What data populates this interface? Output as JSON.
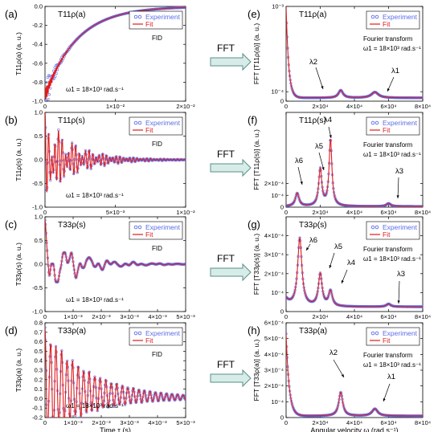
{
  "chart_data": [
    {
      "type": "line",
      "panel_label": "(a)",
      "title": "T11ρ(a)",
      "annotation": "FID",
      "param": "ω1 = 18×10³ rad.s⁻¹",
      "ylabel": "T11ρ(a)  (a. u.)",
      "xlabel": "",
      "xlim": [
        0,
        0.02
      ],
      "ylim": [
        -1.0,
        0.0
      ],
      "xticks": [
        "0",
        "1×10⁻²",
        "2×10⁻²"
      ],
      "yticks": [
        "0.0",
        "-0.2",
        "-0.4",
        "-0.6",
        "-0.8",
        "-1.0"
      ],
      "legend": [
        "Experiment",
        "Fit"
      ],
      "legend_position": "top-right",
      "series": [
        {
          "name": "Experiment",
          "model": "decay",
          "y0": -0.95,
          "tau": 0.0045,
          "noise": 0.18,
          "noise_tau": 0.0012,
          "freq": 6000
        },
        {
          "name": "Fit",
          "model": "decay",
          "y0": -0.95,
          "tau": 0.0045
        }
      ]
    },
    {
      "type": "line",
      "panel_label": "(b)",
      "title": "T11ρ(s)",
      "annotation": "FID",
      "param": "ω1 = 18×10³ rad.s⁻¹",
      "ylabel": "T11ρ(s)  (a. u.)",
      "xlabel": "",
      "xlim": [
        0,
        0.01
      ],
      "ylim": [
        -1.0,
        1.0
      ],
      "xticks": [
        "0",
        "5×10⁻³",
        "1×10⁻²"
      ],
      "yticks": [
        "1.0",
        "0.5",
        "0.0",
        "-0.5",
        "-1.0"
      ],
      "legend": [
        "Experiment",
        "Fit"
      ],
      "legend_position": "top-right",
      "series": [
        {
          "name": "Experiment",
          "model": "osc",
          "comps": [
            [
              0.55,
              26000,
              0.0022
            ],
            [
              0.35,
              20000,
              0.002
            ],
            [
              0.15,
              6500,
              0.0015
            ]
          ]
        },
        {
          "name": "Fit",
          "model": "osc",
          "comps": [
            [
              0.55,
              26000,
              0.0022
            ],
            [
              0.35,
              20000,
              0.002
            ],
            [
              0.15,
              6500,
              0.0015
            ]
          ]
        }
      ]
    },
    {
      "type": "line",
      "panel_label": "(c)",
      "title": "T33ρ(s)",
      "annotation": "FID",
      "param": "ω1 = 18×10³ rad.s⁻¹",
      "ylabel": "T33ρ(s)  (a. u.)",
      "xlabel": "",
      "xlim": [
        0,
        0.005
      ],
      "ylim": [
        -1.0,
        1.0
      ],
      "xticks": [
        "0",
        "1×10⁻³",
        "2×10⁻³",
        "3×10⁻³",
        "4×10⁻³",
        "5×10⁻³"
      ],
      "yticks": [
        "1.0",
        "0.5",
        "0.0",
        "-0.5",
        "-1.0"
      ],
      "legend": [
        "Experiment",
        "Fit"
      ],
      "legend_position": "top-right",
      "series": [
        {
          "name": "Experiment",
          "model": "osc",
          "comps": [
            [
              0.45,
              8000,
              0.001
            ],
            [
              0.28,
              20000,
              0.0012
            ],
            [
              0.15,
              26000,
              0.001
            ],
            [
              0.05,
              60000,
              0.0006
            ]
          ]
        },
        {
          "name": "Fit",
          "model": "osc",
          "comps": [
            [
              0.45,
              8000,
              0.001
            ],
            [
              0.28,
              20000,
              0.0012
            ],
            [
              0.15,
              26000,
              0.001
            ],
            [
              0.05,
              60000,
              0.0006
            ]
          ]
        }
      ]
    },
    {
      "type": "line",
      "panel_label": "(d)",
      "title": "T33ρ(a)",
      "annotation": "FID",
      "param": "ω1 = 18×10³ rad.s⁻¹",
      "ylabel": "T33ρ(a)  (a. u.)",
      "xlabel": "Time τ  (s)",
      "xlim": [
        0,
        0.005
      ],
      "ylim": [
        -0.2,
        0.8
      ],
      "xticks": [
        "0",
        "1×10⁻³",
        "2×10⁻³",
        "3×10⁻³",
        "4×10⁻³",
        "5×10⁻³"
      ],
      "yticks": [
        "0.8",
        "0.7",
        "0.6",
        "0.5",
        "0.4",
        "0.3",
        "0.2",
        "0.1",
        "0.0",
        "-0.1",
        "-0.2"
      ],
      "legend": [
        "Experiment",
        "Fit"
      ],
      "legend_position": "top-right",
      "series": [
        {
          "name": "Experiment",
          "model": "osc",
          "offset": 0.14,
          "offset_tau": 0.002,
          "comps": [
            [
              0.55,
              32000,
              0.0016
            ],
            [
              0.06,
              52000,
              0.0012
            ]
          ]
        },
        {
          "name": "Fit",
          "model": "osc",
          "offset": 0.14,
          "offset_tau": 0.002,
          "comps": [
            [
              0.55,
              32000,
              0.0016
            ],
            [
              0.06,
              52000,
              0.0012
            ]
          ]
        }
      ]
    },
    {
      "type": "line",
      "panel_label": "(e)",
      "title": "T11ρ(a)",
      "annotation": "Fourier transform",
      "param": "ω1 = 18×10³ rad.s⁻¹",
      "ylabel": "FFT [T11ρ(a)]  (a. u.)",
      "xlabel": "",
      "xlim": [
        0,
        80000
      ],
      "ylim": [
        0,
        0.001
      ],
      "xticks": [
        "0",
        "2×10⁴",
        "4×10⁴",
        "6×10⁴",
        "8×10⁴"
      ],
      "yticks": [
        "10⁻³",
        "10⁻⁴"
      ],
      "legend": [
        "Experiment",
        "Fit"
      ],
      "legend_position": "top-right",
      "peaks": [
        "λ2",
        "λ1"
      ],
      "series": [
        {
          "name": "Experiment",
          "model": "spec",
          "base": 3.5e-05,
          "head_amp": 0.00097,
          "head_w": 1500,
          "lor": [
            [
              32000,
              8e-05,
              1600
            ],
            [
              52000,
              6e-05,
              2500
            ]
          ]
        },
        {
          "name": "Fit",
          "model": "spec",
          "base": 3.5e-05,
          "head_amp": 0.00097,
          "head_w": 1500,
          "lor": [
            [
              32000,
              8e-05,
              1600
            ],
            [
              52000,
              6e-05,
              2500
            ]
          ]
        }
      ]
    },
    {
      "type": "line",
      "panel_label": "(f)",
      "title": "T11ρ(s)",
      "annotation": "Fourier transform",
      "param": "ω1 = 18×10³ rad.s⁻¹",
      "ylabel": "FFT [T11ρ(s)]  (a. u.)",
      "xlabel": "",
      "xlim": [
        0,
        80000
      ],
      "ylim": [
        0,
        0.0008
      ],
      "xticks": [
        "0",
        "2×10⁴",
        "4×10⁴",
        "6×10⁴",
        "8×10⁴"
      ],
      "yticks": [
        "10⁻⁴",
        "2×10⁻⁴"
      ],
      "legend": [
        "Experiment",
        "Fit"
      ],
      "legend_position": "top-right",
      "peaks": [
        "λ6",
        "λ5",
        "λ4",
        "λ3"
      ],
      "series": [
        {
          "name": "Experiment",
          "model": "spec",
          "base": 6e-06,
          "head_amp": 0.0,
          "head_w": 1500,
          "lor": [
            [
              6500,
              0.00011,
              1300
            ],
            [
              20000,
              0.00031,
              1100
            ],
            [
              26000,
              0.00056,
              1000
            ],
            [
              60000,
              2.5e-05,
              1500
            ]
          ]
        },
        {
          "name": "Fit",
          "model": "spec",
          "base": 6e-06,
          "head_amp": 0.0,
          "head_w": 1500,
          "lor": [
            [
              6500,
              0.00011,
              1300
            ],
            [
              20000,
              0.00031,
              1100
            ],
            [
              26000,
              0.00056,
              1000
            ],
            [
              60000,
              2.5e-05,
              1500
            ]
          ]
        }
      ]
    },
    {
      "type": "line",
      "panel_label": "(g)",
      "title": "T33ρ(s)",
      "annotation": "Fourier transform",
      "param": "ω1 = 18×10³ rad.s⁻¹",
      "ylabel": "FFT [T33ρ(s)]  (a. u.)",
      "xlabel": "",
      "xlim": [
        0,
        80000
      ],
      "ylim": [
        0,
        0.0005
      ],
      "xticks": [
        "0",
        "2×10⁴",
        "4×10⁴",
        "6×10⁴",
        "8×10⁴"
      ],
      "yticks": [
        "10⁻⁴",
        "2×10⁻⁴",
        "3×10⁻⁴",
        "4×10⁻⁴"
      ],
      "legend": [
        "Experiment",
        "Fit"
      ],
      "legend_position": "top-right",
      "peaks": [
        "λ6",
        "λ5",
        "λ4",
        "λ3"
      ],
      "series": [
        {
          "name": "Experiment",
          "model": "spec",
          "base": 2.5e-05,
          "head_amp": 4e-05,
          "head_w": 2500,
          "lor": [
            [
              8000,
              0.00036,
              1500
            ],
            [
              20000,
              0.00017,
              1300
            ],
            [
              26000,
              8e-05,
              1300
            ],
            [
              60000,
              1.5e-05,
              1500
            ]
          ]
        },
        {
          "name": "Fit",
          "model": "spec",
          "base": 2.5e-05,
          "head_amp": 4e-05,
          "head_w": 2500,
          "lor": [
            [
              8000,
              0.00036,
              1500
            ],
            [
              20000,
              0.00017,
              1300
            ],
            [
              26000,
              8e-05,
              1300
            ],
            [
              60000,
              1.5e-05,
              1500
            ]
          ]
        }
      ]
    },
    {
      "type": "line",
      "panel_label": "(h)",
      "title": "T33ρ(a)",
      "annotation": "Fourier transform",
      "param": "ω1 = 18×10³ rad.s⁻¹",
      "ylabel": "FFT [T33ρ(a)]  (a. u.)",
      "xlabel": "Angular velocity ω  (rad.s⁻¹)",
      "xlim": [
        0,
        80000
      ],
      "ylim": [
        0,
        0.0006
      ],
      "xticks": [
        "0",
        "2×10⁴",
        "4×10⁴",
        "6×10⁴",
        "8×10⁴"
      ],
      "yticks": [
        "10⁻⁴",
        "2×10⁻⁴",
        "3×10⁻⁴",
        "4×10⁻⁴",
        "5×10⁻⁴",
        "6×10⁻⁴"
      ],
      "legend": [
        "Experiment",
        "Fit"
      ],
      "legend_position": "top-right",
      "peaks": [
        "λ2",
        "λ1"
      ],
      "series": [
        {
          "name": "Experiment",
          "model": "spec",
          "base": 1e-05,
          "head_amp": 0.00052,
          "head_w": 1800,
          "lor": [
            [
              32000,
              0.00015,
              1400
            ],
            [
              52000,
              4.5e-05,
              2000
            ]
          ]
        },
        {
          "name": "Fit",
          "model": "spec",
          "base": 1e-05,
          "head_amp": 0.00052,
          "head_w": 1800,
          "lor": [
            [
              32000,
              0.00015,
              1400
            ],
            [
              52000,
              4.5e-05,
              2000
            ]
          ]
        }
      ]
    }
  ],
  "arrows": [
    {
      "label": "FFT"
    },
    {
      "label": "FFT"
    },
    {
      "label": "FFT"
    },
    {
      "label": "FFT"
    }
  ],
  "colors": {
    "experiment": "#5b6ee8",
    "fit": "#e31a1c",
    "arrow_fill": "#d7ece8",
    "arrow_stroke": "#5a8f86"
  }
}
